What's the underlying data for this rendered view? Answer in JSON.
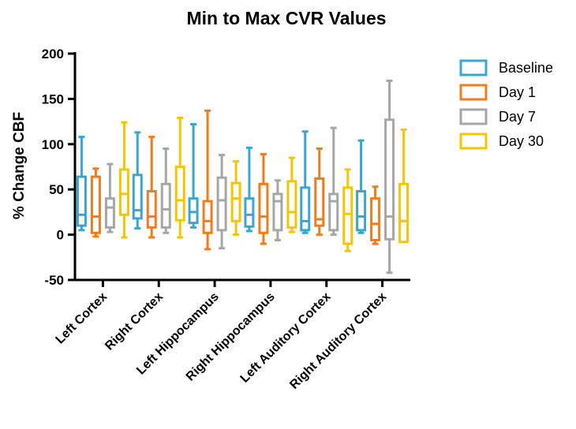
{
  "chart_data": {
    "type": "boxplot",
    "title": "Min to Max CVR Values",
    "ylabel": "% Change CBF",
    "xlabel": "",
    "ylim": [
      -50,
      200
    ],
    "yticks": [
      -50,
      0,
      50,
      100,
      150,
      200
    ],
    "categories": [
      "Left Cortex",
      "Right Cortex",
      "Left Hippocampus",
      "Right Hippocampus",
      "Left Auditory Cortex",
      "Right Auditory Cortex"
    ],
    "legend_position": "right",
    "series": [
      {
        "name": "Baseline",
        "color": "#3AA6CF",
        "boxes": [
          {
            "min": 5,
            "q1": 10,
            "median": 22,
            "q3": 64,
            "max": 108
          },
          {
            "min": 7,
            "q1": 18,
            "median": 27,
            "q3": 66,
            "max": 113
          },
          {
            "min": 8,
            "q1": 13,
            "median": 25,
            "q3": 40,
            "max": 122
          },
          {
            "min": 4,
            "q1": 9,
            "median": 22,
            "q3": 40,
            "max": 96
          },
          {
            "min": 2,
            "q1": 5,
            "median": 15,
            "q3": 52,
            "max": 114
          },
          {
            "min": 2,
            "q1": 5,
            "median": 20,
            "q3": 48,
            "max": 104
          }
        ]
      },
      {
        "name": "Day 1",
        "color": "#F07C1A",
        "boxes": [
          {
            "min": -2,
            "q1": 2,
            "median": 20,
            "q3": 64,
            "max": 73
          },
          {
            "min": -3,
            "q1": 8,
            "median": 20,
            "q3": 48,
            "max": 108
          },
          {
            "min": -16,
            "q1": 2,
            "median": 15,
            "q3": 37,
            "max": 137
          },
          {
            "min": -10,
            "q1": 2,
            "median": 20,
            "q3": 56,
            "max": 89
          },
          {
            "min": 0,
            "q1": 10,
            "median": 17,
            "q3": 62,
            "max": 95
          },
          {
            "min": -10,
            "q1": -6,
            "median": 12,
            "q3": 40,
            "max": 53
          }
        ]
      },
      {
        "name": "Day 7",
        "color": "#A6A6A6",
        "boxes": [
          {
            "min": 3,
            "q1": 8,
            "median": 30,
            "q3": 40,
            "max": 78
          },
          {
            "min": 2,
            "q1": 8,
            "median": 28,
            "q3": 56,
            "max": 95
          },
          {
            "min": -15,
            "q1": 5,
            "median": 38,
            "q3": 63,
            "max": 88
          },
          {
            "min": -6,
            "q1": 5,
            "median": 37,
            "q3": 45,
            "max": 60
          },
          {
            "min": 0,
            "q1": 5,
            "median": 37,
            "q3": 45,
            "max": 118
          },
          {
            "min": -42,
            "q1": -5,
            "median": 20,
            "q3": 127,
            "max": 170
          }
        ]
      },
      {
        "name": "Day 30",
        "color": "#F5C500",
        "boxes": [
          {
            "min": -3,
            "q1": 22,
            "median": 45,
            "q3": 72,
            "max": 124
          },
          {
            "min": -3,
            "q1": 16,
            "median": 38,
            "q3": 75,
            "max": 129
          },
          {
            "min": 0,
            "q1": 15,
            "median": 40,
            "q3": 57,
            "max": 81
          },
          {
            "min": 3,
            "q1": 8,
            "median": 25,
            "q3": 59,
            "max": 85
          },
          {
            "min": -18,
            "q1": -10,
            "median": 23,
            "q3": 52,
            "max": 72
          },
          {
            "min": -8,
            "q1": -8,
            "median": 15,
            "q3": 56,
            "max": 116
          }
        ]
      }
    ]
  }
}
